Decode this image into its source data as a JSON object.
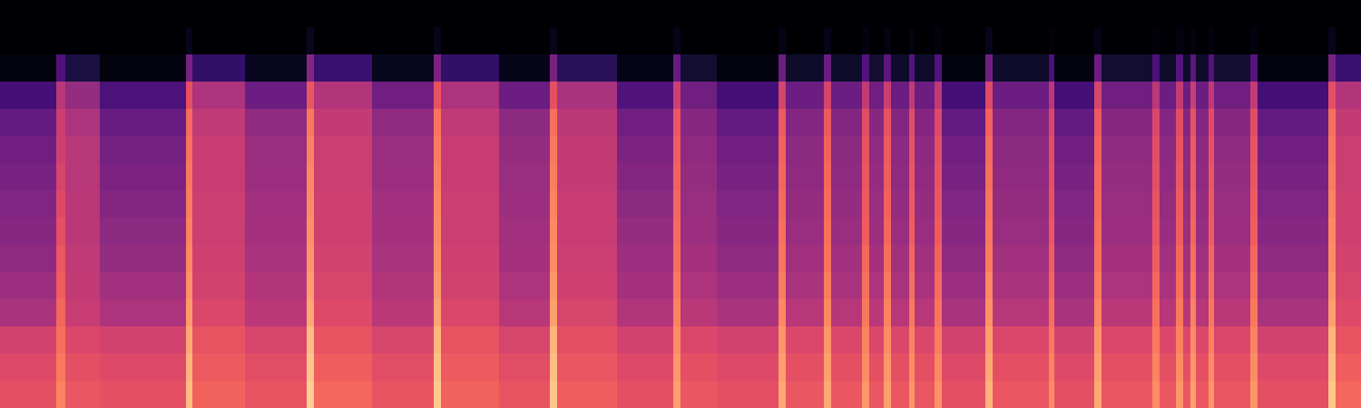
{
  "chart_data": {
    "type": "heatmap",
    "color": "magma",
    "tick_labels": false,
    "xlim": [
      0,
      1500
    ],
    "ylim": [
      0,
      15
    ],
    "zlim": [
      0,
      100
    ],
    "x_bins": [
      0,
      62,
      72,
      110,
      205,
      212,
      270,
      338,
      346,
      410,
      478,
      486,
      550,
      606,
      614,
      680,
      742,
      750,
      790,
      858,
      866,
      908,
      916,
      950,
      958,
      974,
      982,
      1002,
      1008,
      1030,
      1038,
      1086,
      1094,
      1156,
      1162,
      1206,
      1214,
      1270,
      1278,
      1296,
      1304,
      1312,
      1318,
      1332,
      1338,
      1378,
      1386,
      1464,
      1472,
      1500
    ],
    "y_bins": [
      0,
      1,
      2,
      3,
      4,
      5,
      6,
      7,
      8,
      9,
      10,
      11,
      12,
      13,
      14,
      15
    ],
    "cells": [
      [
        62,
        60,
        57,
        47,
        44,
        41,
        39,
        37,
        35,
        33,
        30,
        22,
        3,
        0,
        0
      ],
      [
        74,
        72,
        70,
        68,
        66,
        64,
        62,
        60,
        58,
        56,
        55,
        50,
        25,
        0,
        0
      ],
      [
        64,
        62,
        59,
        54,
        53,
        52,
        51,
        51,
        50,
        50,
        48,
        42,
        12,
        0,
        0
      ],
      [
        62,
        60,
        57,
        48,
        45,
        42,
        40,
        38,
        36,
        34,
        31,
        24,
        3,
        0,
        0
      ],
      [
        86,
        84,
        82,
        79,
        77,
        75,
        74,
        73,
        72,
        71,
        69,
        62,
        35,
        5,
        0
      ],
      [
        67,
        65,
        63,
        59,
        57,
        56,
        55,
        55,
        54,
        54,
        52,
        48,
        18,
        0,
        0
      ],
      [
        63,
        61,
        58,
        51,
        49,
        47,
        46,
        45,
        44,
        43,
        41,
        32,
        6,
        0,
        0
      ],
      [
        90,
        88,
        86,
        82,
        80,
        78,
        77,
        76,
        75,
        74,
        72,
        64,
        38,
        6,
        0
      ],
      [
        68,
        66,
        63,
        60,
        58,
        57,
        56,
        56,
        55,
        55,
        53,
        49,
        20,
        0,
        0
      ],
      [
        63,
        61,
        58,
        51,
        49,
        47,
        46,
        45,
        44,
        43,
        41,
        33,
        6,
        0,
        0
      ],
      [
        89,
        87,
        85,
        81,
        79,
        77,
        76,
        75,
        74,
        73,
        71,
        63,
        36,
        5,
        0
      ],
      [
        67,
        65,
        63,
        59,
        57,
        56,
        55,
        55,
        54,
        54,
        52,
        48,
        18,
        0,
        0
      ],
      [
        63,
        61,
        58,
        50,
        48,
        46,
        45,
        44,
        43,
        42,
        40,
        32,
        5,
        0,
        0
      ],
      [
        88,
        86,
        84,
        80,
        78,
        76,
        75,
        74,
        73,
        72,
        70,
        62,
        35,
        5,
        0
      ],
      [
        66,
        64,
        62,
        58,
        56,
        55,
        54,
        54,
        53,
        53,
        51,
        47,
        16,
        0,
        0
      ],
      [
        62,
        60,
        57,
        49,
        46,
        44,
        42,
        40,
        38,
        36,
        33,
        25,
        4,
        0,
        0
      ],
      [
        80,
        78,
        76,
        74,
        72,
        70,
        69,
        68,
        67,
        66,
        64,
        56,
        30,
        4,
        0
      ],
      [
        64,
        62,
        59,
        51,
        48,
        46,
        44,
        43,
        42,
        41,
        39,
        33,
        9,
        0,
        0
      ],
      [
        62,
        60,
        57,
        47,
        44,
        41,
        39,
        37,
        35,
        33,
        30,
        22,
        3,
        0,
        0
      ],
      [
        82,
        80,
        78,
        75,
        73,
        71,
        70,
        69,
        68,
        67,
        65,
        58,
        32,
        4,
        0
      ],
      [
        64,
        62,
        59,
        50,
        47,
        45,
        43,
        42,
        41,
        40,
        38,
        32,
        8,
        0,
        0
      ],
      [
        82,
        80,
        78,
        75,
        73,
        71,
        70,
        69,
        68,
        67,
        65,
        58,
        32,
        4,
        0
      ],
      [
        64,
        62,
        59,
        50,
        47,
        45,
        43,
        42,
        41,
        40,
        38,
        32,
        8,
        0,
        0
      ],
      [
        78,
        76,
        74,
        72,
        70,
        68,
        66,
        65,
        64,
        63,
        61,
        53,
        26,
        3,
        0
      ],
      [
        64,
        62,
        59,
        51,
        48,
        46,
        44,
        43,
        42,
        41,
        39,
        33,
        9,
        0,
        0
      ],
      [
        80,
        78,
        76,
        74,
        72,
        70,
        68,
        67,
        66,
        65,
        63,
        55,
        28,
        3,
        0
      ],
      [
        64,
        62,
        59,
        50,
        47,
        45,
        43,
        42,
        41,
        40,
        38,
        32,
        8,
        0,
        0
      ],
      [
        78,
        76,
        74,
        72,
        70,
        68,
        66,
        65,
        64,
        63,
        61,
        53,
        26,
        3,
        0
      ],
      [
        64,
        62,
        59,
        50,
        47,
        45,
        43,
        42,
        41,
        40,
        38,
        32,
        8,
        0,
        0
      ],
      [
        77,
        75,
        73,
        71,
        69,
        67,
        65,
        64,
        63,
        62,
        60,
        52,
        25,
        3,
        0
      ],
      [
        62,
        60,
        57,
        47,
        44,
        41,
        39,
        37,
        35,
        33,
        30,
        22,
        3,
        0,
        0
      ],
      [
        84,
        82,
        80,
        77,
        75,
        73,
        72,
        71,
        70,
        69,
        67,
        60,
        33,
        5,
        0
      ],
      [
        64,
        62,
        59,
        50,
        47,
        45,
        43,
        42,
        41,
        40,
        38,
        32,
        8,
        0,
        0
      ],
      [
        76,
        74,
        72,
        70,
        68,
        66,
        64,
        63,
        62,
        61,
        59,
        51,
        24,
        2,
        0
      ],
      [
        62,
        60,
        57,
        47,
        44,
        41,
        39,
        37,
        35,
        33,
        30,
        22,
        3,
        0,
        0
      ],
      [
        82,
        80,
        78,
        75,
        73,
        71,
        70,
        69,
        68,
        67,
        65,
        58,
        32,
        4,
        0
      ],
      [
        64,
        62,
        59,
        51,
        48,
        46,
        44,
        43,
        42,
        41,
        39,
        33,
        9,
        0,
        0
      ],
      [
        76,
        74,
        72,
        70,
        68,
        66,
        64,
        63,
        62,
        61,
        59,
        51,
        24,
        2,
        0
      ],
      [
        64,
        62,
        59,
        50,
        47,
        45,
        43,
        42,
        41,
        40,
        38,
        32,
        8,
        0,
        0
      ],
      [
        78,
        76,
        74,
        72,
        70,
        68,
        66,
        65,
        64,
        63,
        61,
        53,
        26,
        3,
        0
      ],
      [
        64,
        62,
        59,
        50,
        47,
        45,
        43,
        42,
        41,
        40,
        38,
        32,
        8,
        0,
        0
      ],
      [
        80,
        78,
        76,
        74,
        72,
        70,
        68,
        67,
        66,
        65,
        63,
        55,
        28,
        3,
        0
      ],
      [
        64,
        62,
        59,
        50,
        47,
        45,
        43,
        42,
        41,
        40,
        38,
        32,
        8,
        0,
        0
      ],
      [
        78,
        76,
        74,
        72,
        70,
        68,
        66,
        65,
        64,
        63,
        61,
        53,
        26,
        3,
        0
      ],
      [
        64,
        62,
        59,
        51,
        48,
        46,
        44,
        43,
        42,
        41,
        39,
        33,
        9,
        0,
        0
      ],
      [
        78,
        76,
        74,
        72,
        70,
        68,
        66,
        65,
        64,
        63,
        61,
        53,
        26,
        3,
        0
      ],
      [
        62,
        60,
        57,
        47,
        44,
        41,
        39,
        37,
        35,
        33,
        30,
        22,
        3,
        0,
        0
      ],
      [
        88,
        86,
        84,
        80,
        78,
        76,
        75,
        74,
        73,
        72,
        70,
        62,
        35,
        5,
        0
      ],
      [
        68,
        66,
        63,
        60,
        58,
        57,
        56,
        56,
        55,
        55,
        53,
        49,
        20,
        0,
        0
      ]
    ]
  }
}
